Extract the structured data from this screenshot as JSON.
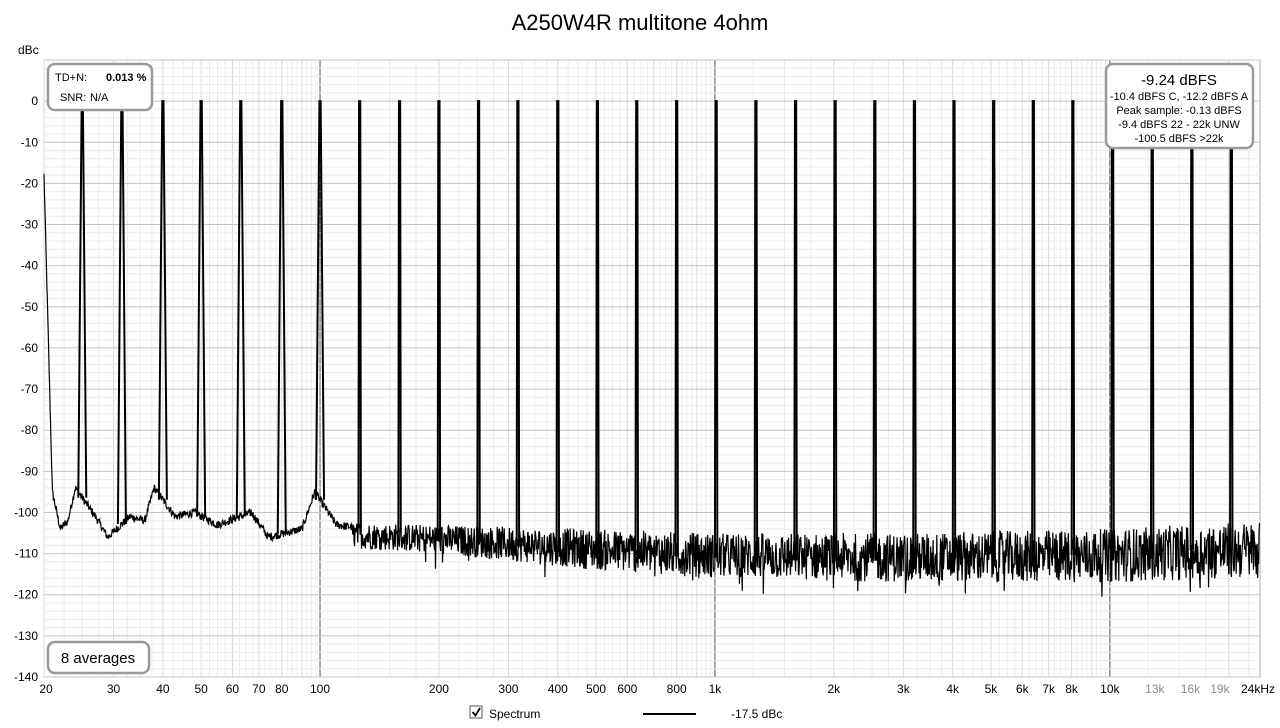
{
  "chart_data": {
    "type": "line",
    "title": "A250W4R multitone 4ohm",
    "ylabel": "dBc",
    "x_scale": "log",
    "xlim": [
      20,
      24000
    ],
    "ylim": [
      -140,
      10
    ],
    "grid": true,
    "y_ticks": [
      0,
      -10,
      -20,
      -30,
      -40,
      -50,
      -60,
      -70,
      -80,
      -90,
      -100,
      -110,
      -120,
      -130,
      -140
    ],
    "x_ticks": [
      {
        "value": 20,
        "label": "20"
      },
      {
        "value": 30,
        "label": "30"
      },
      {
        "value": 40,
        "label": "40"
      },
      {
        "value": 50,
        "label": "50"
      },
      {
        "value": 60,
        "label": "60"
      },
      {
        "value": 70,
        "label": "70"
      },
      {
        "value": 80,
        "label": "80"
      },
      {
        "value": 100,
        "label": "100"
      },
      {
        "value": 200,
        "label": "200"
      },
      {
        "value": 300,
        "label": "300"
      },
      {
        "value": 400,
        "label": "400"
      },
      {
        "value": 500,
        "label": "500"
      },
      {
        "value": 600,
        "label": "600"
      },
      {
        "value": 800,
        "label": "800"
      },
      {
        "value": 1000,
        "label": "1k"
      },
      {
        "value": 2000,
        "label": "2k"
      },
      {
        "value": 3000,
        "label": "3k"
      },
      {
        "value": 4000,
        "label": "4k"
      },
      {
        "value": 5000,
        "label": "5k"
      },
      {
        "value": 6000,
        "label": "6k"
      },
      {
        "value": 7000,
        "label": "7k"
      },
      {
        "value": 8000,
        "label": "8k"
      },
      {
        "value": 10000,
        "label": "10k"
      },
      {
        "value": 13000,
        "label": "13k",
        "muted": true
      },
      {
        "value": 16000,
        "label": "16k",
        "muted": true
      },
      {
        "value": 19000,
        "label": "19k",
        "muted": true
      },
      {
        "value": 24000,
        "label": "24kHz"
      }
    ],
    "tone_frequencies": [
      25,
      31.5,
      40,
      50,
      63,
      80,
      100,
      126,
      159,
      200,
      252,
      317,
      400,
      504,
      634,
      800,
      1007,
      1270,
      1600,
      2015,
      2540,
      3200,
      4030,
      5080,
      6400,
      8060,
      10160,
      12800,
      16130,
      20300
    ],
    "tone_level": 0,
    "noise_floor": [
      {
        "f": 20,
        "db": -18
      },
      {
        "f": 21,
        "db": -95
      },
      {
        "f": 22,
        "db": -104
      },
      {
        "f": 23,
        "db": -102
      },
      {
        "f": 24,
        "db": -94
      },
      {
        "f": 27,
        "db": -101
      },
      {
        "f": 29,
        "db": -106
      },
      {
        "f": 33,
        "db": -101
      },
      {
        "f": 36,
        "db": -102
      },
      {
        "f": 38,
        "db": -94
      },
      {
        "f": 43,
        "db": -101
      },
      {
        "f": 48,
        "db": -100
      },
      {
        "f": 55,
        "db": -103
      },
      {
        "f": 67,
        "db": -100
      },
      {
        "f": 74,
        "db": -106
      },
      {
        "f": 90,
        "db": -104
      },
      {
        "f": 97,
        "db": -95
      },
      {
        "f": 110,
        "db": -103
      },
      {
        "f": 130,
        "db": -104
      },
      {
        "f": 200,
        "db": -106
      },
      {
        "f": 300,
        "db": -108
      },
      {
        "f": 500,
        "db": -110
      },
      {
        "f": 1000,
        "db": -111
      },
      {
        "f": 2000,
        "db": -112
      },
      {
        "f": 5000,
        "db": -111
      },
      {
        "f": 10000,
        "db": -110
      },
      {
        "f": 18000,
        "db": -109
      },
      {
        "f": 24000,
        "db": -108
      }
    ],
    "noise_min": [
      {
        "f": 20,
        "db": -104
      },
      {
        "f": 200,
        "db": -110
      },
      {
        "f": 500,
        "db": -114
      },
      {
        "f": 1000,
        "db": -116
      },
      {
        "f": 3000,
        "db": -117
      },
      {
        "f": 10000,
        "db": -117
      },
      {
        "f": 24000,
        "db": -116
      }
    ],
    "noise_max": [
      {
        "f": 20,
        "db": -100
      },
      {
        "f": 200,
        "db": -103
      },
      {
        "f": 500,
        "db": -104
      },
      {
        "f": 1000,
        "db": -105
      },
      {
        "f": 3000,
        "db": -105
      },
      {
        "f": 10000,
        "db": -104
      },
      {
        "f": 24000,
        "db": -102
      }
    ],
    "series": [
      {
        "name": "Spectrum",
        "level_label": "-17.5 dBc",
        "color": "#000000",
        "visible": true
      }
    ]
  },
  "thd_box": {
    "tdn_label": "TD+N:",
    "tdn_value": "0.013 %",
    "snr_label": "SNR:",
    "snr_value": "N/A"
  },
  "level_box": {
    "main": "-9.24 dBFS",
    "line1": "-10.4 dBFS C, -12.2 dBFS A",
    "line2": "Peak sample: -0.13 dBFS",
    "line3": "-9.4 dBFS 22 - 22k UNW",
    "line4": "-100.5 dBFS >22k"
  },
  "averages_box": {
    "label": "8 averages"
  },
  "legend": {
    "checkbox_checked": true,
    "label": "Spectrum",
    "level": "-17.5 dBc"
  }
}
